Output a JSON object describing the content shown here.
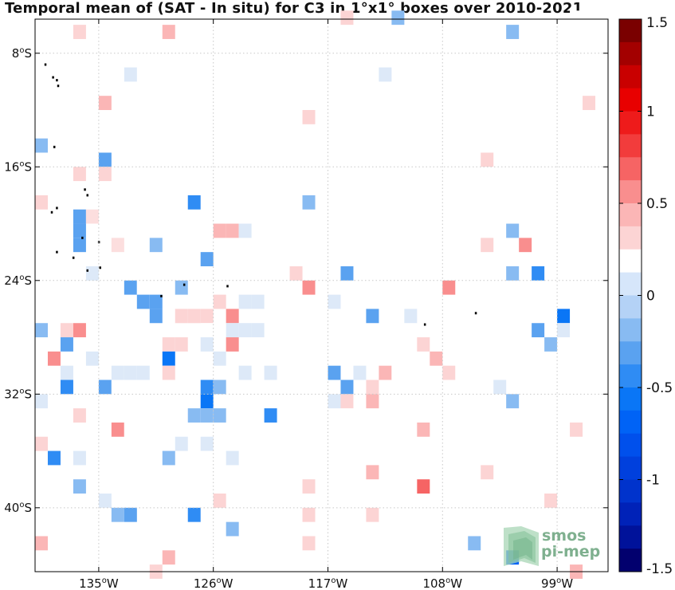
{
  "title": "Temporal mean of (SAT - In situ) for C3 in 1°x1° boxes over 2010-2021",
  "map": {
    "lon_range": [
      -140,
      -95
    ],
    "lat_range": [
      -44.5,
      -5.6
    ],
    "lat_ticks": [
      {
        "value": -8,
        "label": "8°S"
      },
      {
        "value": -16,
        "label": "16°S"
      },
      {
        "value": -24,
        "label": "24°S"
      },
      {
        "value": -32,
        "label": "32°S"
      },
      {
        "value": -40,
        "label": "40°S"
      }
    ],
    "lon_ticks": [
      {
        "value": -135,
        "label": "135°W"
      },
      {
        "value": -126,
        "label": "126°W"
      },
      {
        "value": -117,
        "label": "117°W"
      },
      {
        "value": -108,
        "label": "108°W"
      },
      {
        "value": -99,
        "label": "99°W"
      }
    ],
    "grid": true
  },
  "colorbar": {
    "range": [
      -1.5,
      1.5
    ],
    "ticks": [
      {
        "value": 1.5,
        "label": "1.5"
      },
      {
        "value": 1,
        "label": "1"
      },
      {
        "value": 0.5,
        "label": "0.5"
      },
      {
        "value": 0,
        "label": "0"
      },
      {
        "value": -0.5,
        "label": "-0.5"
      },
      {
        "value": -1,
        "label": "-1"
      },
      {
        "value": -1.5,
        "label": "-1.5"
      }
    ]
  },
  "chart_data": {
    "type": "heatmap",
    "cell_size_deg": 1,
    "cells": [
      {
        "lon": -136.5,
        "lat": -6.5,
        "value": 0.35
      },
      {
        "lon": -132.5,
        "lat": -6.5,
        "value": 0.2
      },
      {
        "lon": -129.5,
        "lat": -6.5,
        "value": 0.45
      },
      {
        "lon": -115.5,
        "lat": -5.5,
        "value": 0.3
      },
      {
        "lon": -111.5,
        "lat": -5.5,
        "value": -0.2
      },
      {
        "lon": -102.5,
        "lat": -6.5,
        "value": -0.2
      },
      {
        "lon": -97.5,
        "lat": -5.5,
        "value": 0.2
      },
      {
        "lon": -132.5,
        "lat": -9.5,
        "value": -0.1
      },
      {
        "lon": -112.5,
        "lat": -9.5,
        "value": -0.1
      },
      {
        "lon": -134.5,
        "lat": -11.5,
        "value": 0.45
      },
      {
        "lon": -118.5,
        "lat": -12.5,
        "value": 0.3
      },
      {
        "lon": -96.5,
        "lat": -11.5,
        "value": 0.25
      },
      {
        "lon": -139.5,
        "lat": -14.5,
        "value": -0.25
      },
      {
        "lon": -137.5,
        "lat": -15.5,
        "value": 0.15
      },
      {
        "lon": -134.5,
        "lat": -15.5,
        "value": -0.3
      },
      {
        "lon": -138.5,
        "lat": -16.5,
        "value": 0.2
      },
      {
        "lon": -136.5,
        "lat": -16.5,
        "value": 0.35
      },
      {
        "lon": -133.5,
        "lat": -16.5,
        "value": 0.2
      },
      {
        "lon": -134.5,
        "lat": -16.5,
        "value": 0.3
      },
      {
        "lon": -104.5,
        "lat": -15.5,
        "value": 0.25
      },
      {
        "lon": -139.5,
        "lat": -18.5,
        "value": 0.25
      },
      {
        "lon": -127.5,
        "lat": -18.5,
        "value": -0.4
      },
      {
        "lon": -118.5,
        "lat": -18.5,
        "value": -0.25
      },
      {
        "lon": -136.5,
        "lat": -19.5,
        "value": -0.3
      },
      {
        "lon": -135.5,
        "lat": -19.5,
        "value": 0.1
      },
      {
        "lon": -136.5,
        "lat": -20.5,
        "value": -0.3
      },
      {
        "lon": -134.5,
        "lat": -20.5,
        "value": 0.15
      },
      {
        "lon": -130.5,
        "lat": -20.5,
        "value": 0.2
      },
      {
        "lon": -125.5,
        "lat": -20.5,
        "value": 0.45
      },
      {
        "lon": -124.5,
        "lat": -20.5,
        "value": 0.45
      },
      {
        "lon": -123.5,
        "lat": -20.5,
        "value": -0.1
      },
      {
        "lon": -102.5,
        "lat": -20.5,
        "value": -0.15
      },
      {
        "lon": -136.5,
        "lat": -21.5,
        "value": -0.3
      },
      {
        "lon": -133.5,
        "lat": -21.5,
        "value": 0.1
      },
      {
        "lon": -130.5,
        "lat": -21.5,
        "value": -0.2
      },
      {
        "lon": -104.5,
        "lat": -21.5,
        "value": 0.3
      },
      {
        "lon": -101.5,
        "lat": -21.5,
        "value": 0.6
      },
      {
        "lon": -132.5,
        "lat": -22.5,
        "value": 0.15
      },
      {
        "lon": -129.5,
        "lat": -22.5,
        "value": 0.15
      },
      {
        "lon": -126.5,
        "lat": -22.5,
        "value": -0.3
      },
      {
        "lon": -135.5,
        "lat": -23.5,
        "value": -0.1
      },
      {
        "lon": -119.5,
        "lat": -23.5,
        "value": 0.3
      },
      {
        "lon": -115.5,
        "lat": -23.5,
        "value": -0.35
      },
      {
        "lon": -102.5,
        "lat": -23.5,
        "value": -0.25
      },
      {
        "lon": -100.5,
        "lat": -23.5,
        "value": -0.45
      },
      {
        "lon": -138.5,
        "lat": -24.5,
        "value": 0.15
      },
      {
        "lon": -132.5,
        "lat": -24.5,
        "value": -0.3
      },
      {
        "lon": -131.5,
        "lat": -24.5,
        "value": 0.15
      },
      {
        "lon": -128.5,
        "lat": -24.5,
        "value": -0.2
      },
      {
        "lon": -118.5,
        "lat": -24.5,
        "value": 0.55
      },
      {
        "lon": -107.5,
        "lat": -24.5,
        "value": 0.5
      },
      {
        "lon": -131.5,
        "lat": -25.5,
        "value": -0.35
      },
      {
        "lon": -130.5,
        "lat": -25.5,
        "value": -0.35
      },
      {
        "lon": -125.5,
        "lat": -25.5,
        "value": 0.25
      },
      {
        "lon": -123.5,
        "lat": -25.5,
        "value": -0.1
      },
      {
        "lon": -122.5,
        "lat": -25.5,
        "value": -0.1
      },
      {
        "lon": -119.5,
        "lat": -25.5,
        "value": 0.15
      },
      {
        "lon": -116.5,
        "lat": -25.5,
        "value": -0.1
      },
      {
        "lon": -130.5,
        "lat": -26.5,
        "value": -0.35
      },
      {
        "lon": -128.5,
        "lat": -26.5,
        "value": 0.35
      },
      {
        "lon": -127.5,
        "lat": -26.5,
        "value": 0.35
      },
      {
        "lon": -126.5,
        "lat": -26.5,
        "value": 0.35
      },
      {
        "lon": -124.5,
        "lat": -26.5,
        "value": 0.6
      },
      {
        "lon": -113.5,
        "lat": -26.5,
        "value": -0.3
      },
      {
        "lon": -110.5,
        "lat": -26.5,
        "value": -0.1
      },
      {
        "lon": -98.5,
        "lat": -26.5,
        "value": -0.55
      },
      {
        "lon": -139.5,
        "lat": -27.5,
        "value": -0.15
      },
      {
        "lon": -137.5,
        "lat": -27.5,
        "value": 0.25
      },
      {
        "lon": -136.5,
        "lat": -27.5,
        "value": 0.6
      },
      {
        "lon": -126.5,
        "lat": -27.5,
        "value": 0.15
      },
      {
        "lon": -124.5,
        "lat": -27.5,
        "value": -0.1
      },
      {
        "lon": -123.5,
        "lat": -27.5,
        "value": -0.1
      },
      {
        "lon": -122.5,
        "lat": -27.5,
        "value": -0.1
      },
      {
        "lon": -100.5,
        "lat": -27.5,
        "value": -0.35
      },
      {
        "lon": -98.5,
        "lat": -27.5,
        "value": -0.1
      },
      {
        "lon": -96.5,
        "lat": -27.5,
        "value": 0.15
      },
      {
        "lon": -137.5,
        "lat": -28.5,
        "value": -0.3
      },
      {
        "lon": -135.5,
        "lat": -28.5,
        "value": 0.15
      },
      {
        "lon": -129.5,
        "lat": -28.5,
        "value": 0.35
      },
      {
        "lon": -128.5,
        "lat": -28.5,
        "value": 0.3
      },
      {
        "lon": -126.5,
        "lat": -28.5,
        "value": -0.1
      },
      {
        "lon": -124.5,
        "lat": -28.5,
        "value": 0.5
      },
      {
        "lon": -120.5,
        "lat": -28.5,
        "value": 0.15
      },
      {
        "lon": -117.5,
        "lat": -28.5,
        "value": 0.2
      },
      {
        "lon": -109.5,
        "lat": -28.5,
        "value": 0.3
      },
      {
        "lon": -99.5,
        "lat": -28.5,
        "value": -0.15
      },
      {
        "lon": -138.5,
        "lat": -29.5,
        "value": 0.5
      },
      {
        "lon": -135.5,
        "lat": -29.5,
        "value": -0.1
      },
      {
        "lon": -129.5,
        "lat": -29.5,
        "value": -0.55
      },
      {
        "lon": -127.5,
        "lat": -29.5,
        "value": 0.2
      },
      {
        "lon": -125.5,
        "lat": -29.5,
        "value": -0.1
      },
      {
        "lon": -108.5,
        "lat": -29.5,
        "value": 0.4
      },
      {
        "lon": -137.5,
        "lat": -30.5,
        "value": -0.1
      },
      {
        "lon": -133.5,
        "lat": -30.5,
        "value": -0.1
      },
      {
        "lon": -132.5,
        "lat": -30.5,
        "value": -0.1
      },
      {
        "lon": -131.5,
        "lat": -30.5,
        "value": -0.1
      },
      {
        "lon": -129.5,
        "lat": -30.5,
        "value": 0.35
      },
      {
        "lon": -123.5,
        "lat": -30.5,
        "value": -0.1
      },
      {
        "lon": -121.5,
        "lat": -30.5,
        "value": -0.1
      },
      {
        "lon": -119.5,
        "lat": -30.5,
        "value": 0.15
      },
      {
        "lon": -116.5,
        "lat": -30.5,
        "value": -0.3
      },
      {
        "lon": -114.5,
        "lat": -30.5,
        "value": -0.1
      },
      {
        "lon": -112.5,
        "lat": -30.5,
        "value": 0.45
      },
      {
        "lon": -111.5,
        "lat": -30.5,
        "value": 0.2
      },
      {
        "lon": -107.5,
        "lat": -30.5,
        "value": 0.3
      },
      {
        "lon": -137.5,
        "lat": -31.5,
        "value": -0.45
      },
      {
        "lon": -134.5,
        "lat": -31.5,
        "value": -0.3
      },
      {
        "lon": -133.5,
        "lat": -31.5,
        "value": 0.15
      },
      {
        "lon": -126.5,
        "lat": -31.5,
        "value": -0.45
      },
      {
        "lon": -125.5,
        "lat": -31.5,
        "value": -0.25
      },
      {
        "lon": -115.5,
        "lat": -31.5,
        "value": -0.35
      },
      {
        "lon": -113.5,
        "lat": -31.5,
        "value": 0.35
      },
      {
        "lon": -109.5,
        "lat": -31.5,
        "value": 0.15
      },
      {
        "lon": -108.5,
        "lat": -31.5,
        "value": 0.15
      },
      {
        "lon": -103.5,
        "lat": -31.5,
        "value": -0.1
      },
      {
        "lon": -139.5,
        "lat": -32.5,
        "value": -0.1
      },
      {
        "lon": -131.5,
        "lat": -32.5,
        "value": 0.15
      },
      {
        "lon": -126.5,
        "lat": -32.5,
        "value": -0.55
      },
      {
        "lon": -116.5,
        "lat": -32.5,
        "value": -0.1
      },
      {
        "lon": -115.5,
        "lat": -32.5,
        "value": 0.25
      },
      {
        "lon": -113.5,
        "lat": -32.5,
        "value": 0.45
      },
      {
        "lon": -102.5,
        "lat": -32.5,
        "value": -0.25
      },
      {
        "lon": -100.5,
        "lat": -32.5,
        "value": 0.15
      },
      {
        "lon": -136.5,
        "lat": -33.5,
        "value": 0.35
      },
      {
        "lon": -127.5,
        "lat": -33.5,
        "value": -0.15
      },
      {
        "lon": -126.5,
        "lat": -33.5,
        "value": -0.2
      },
      {
        "lon": -125.5,
        "lat": -33.5,
        "value": -0.2
      },
      {
        "lon": -121.5,
        "lat": -33.5,
        "value": -0.45
      },
      {
        "lon": -133.5,
        "lat": -34.5,
        "value": 0.55
      },
      {
        "lon": -132.5,
        "lat": -34.5,
        "value": 0.15
      },
      {
        "lon": -109.5,
        "lat": -34.5,
        "value": 0.4
      },
      {
        "lon": -97.5,
        "lat": -34.5,
        "value": 0.3
      },
      {
        "lon": -139.5,
        "lat": -35.5,
        "value": 0.3
      },
      {
        "lon": -128.5,
        "lat": -35.5,
        "value": -0.1
      },
      {
        "lon": -126.5,
        "lat": -35.5,
        "value": -0.1
      },
      {
        "lon": -138.5,
        "lat": -36.5,
        "value": -0.4
      },
      {
        "lon": -136.5,
        "lat": -36.5,
        "value": -0.1
      },
      {
        "lon": -129.5,
        "lat": -36.5,
        "value": -0.15
      },
      {
        "lon": -126.5,
        "lat": -36.5,
        "value": 0.15
      },
      {
        "lon": -124.5,
        "lat": -36.5,
        "value": -0.1
      },
      {
        "lon": -112.5,
        "lat": -36.5,
        "value": 0.15
      },
      {
        "lon": -108.5,
        "lat": -36.5,
        "value": 0.15
      },
      {
        "lon": -113.5,
        "lat": -37.5,
        "value": 0.45
      },
      {
        "lon": -104.5,
        "lat": -37.5,
        "value": 0.3
      },
      {
        "lon": -136.5,
        "lat": -38.5,
        "value": -0.25
      },
      {
        "lon": -118.5,
        "lat": -38.5,
        "value": 0.35
      },
      {
        "lon": -109.5,
        "lat": -38.5,
        "value": 0.7
      },
      {
        "lon": -134.5,
        "lat": -39.5,
        "value": -0.1
      },
      {
        "lon": -125.5,
        "lat": -39.5,
        "value": 0.25
      },
      {
        "lon": -99.5,
        "lat": -39.5,
        "value": 0.35
      },
      {
        "lon": -133.5,
        "lat": -40.5,
        "value": -0.2
      },
      {
        "lon": -132.5,
        "lat": -40.5,
        "value": -0.35
      },
      {
        "lon": -127.5,
        "lat": -40.5,
        "value": -0.45
      },
      {
        "lon": -118.5,
        "lat": -40.5,
        "value": 0.35
      },
      {
        "lon": -113.5,
        "lat": -40.5,
        "value": 0.3
      },
      {
        "lon": -107.5,
        "lat": -40.5,
        "value": 0.15
      },
      {
        "lon": -97.5,
        "lat": -40.5,
        "value": 0.15
      },
      {
        "lon": -124.5,
        "lat": -41.5,
        "value": -0.2
      },
      {
        "lon": -108.5,
        "lat": -41.5,
        "value": 0.2
      },
      {
        "lon": -100.5,
        "lat": -41.5,
        "value": 0.15
      },
      {
        "lon": -139.5,
        "lat": -42.5,
        "value": 0.45
      },
      {
        "lon": -118.5,
        "lat": -42.5,
        "value": 0.3
      },
      {
        "lon": -112.5,
        "lat": -42.5,
        "value": 0.2
      },
      {
        "lon": -105.5,
        "lat": -42.5,
        "value": -0.2
      },
      {
        "lon": -129.5,
        "lat": -43.5,
        "value": 0.45
      },
      {
        "lon": -102.5,
        "lat": -43.5,
        "value": -0.65
      },
      {
        "lon": -130.5,
        "lat": -44.5,
        "value": 0.3
      },
      {
        "lon": -115.5,
        "lat": -44.5,
        "value": 0.15
      },
      {
        "lon": -97.5,
        "lat": -44.5,
        "value": 0.45
      }
    ],
    "title": "Temporal mean of (SAT - In situ) for C3 in 1°x1° boxes over 2010-2021",
    "colormap": "blue-white-red"
  },
  "islands": [
    {
      "lon": -139.2,
      "lat": -8.8
    },
    {
      "lon": -138.6,
      "lat": -9.7
    },
    {
      "lon": -138.3,
      "lat": -9.9
    },
    {
      "lon": -138.2,
      "lat": -10.3
    },
    {
      "lon": -138.5,
      "lat": -14.6
    },
    {
      "lon": -136.1,
      "lat": -17.6
    },
    {
      "lon": -135.9,
      "lat": -18.0
    },
    {
      "lon": -138.3,
      "lat": -18.9
    },
    {
      "lon": -138.7,
      "lat": -19.2
    },
    {
      "lon": -136.3,
      "lat": -21.0
    },
    {
      "lon": -135.0,
      "lat": -21.3
    },
    {
      "lon": -138.3,
      "lat": -22.0
    },
    {
      "lon": -137.0,
      "lat": -22.4
    },
    {
      "lon": -135.9,
      "lat": -23.3
    },
    {
      "lon": -134.9,
      "lat": -23.1
    },
    {
      "lon": -130.1,
      "lat": -25.1
    },
    {
      "lon": -128.3,
      "lat": -24.3
    },
    {
      "lon": -124.9,
      "lat": -24.4
    },
    {
      "lon": -109.4,
      "lat": -27.1
    },
    {
      "lon": -105.4,
      "lat": -26.3
    }
  ],
  "logo": {
    "line1": "smos",
    "line2": "pi-mep"
  }
}
